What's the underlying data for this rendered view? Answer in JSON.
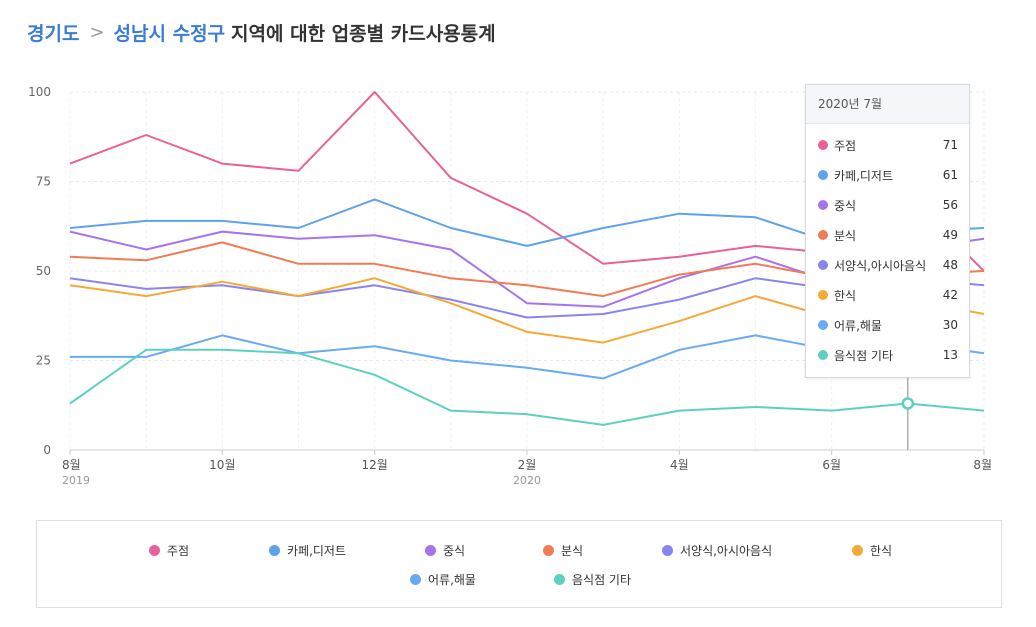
{
  "header": {
    "region": "경기도",
    "separator": ">",
    "subregion": "성남시 수정구",
    "title": "지역에 대한 업종별 카드사용통계"
  },
  "colors": {
    "주점": "#e8629a",
    "카페,디저트": "#5fa2ee",
    "중식": "#a574ee",
    "분식": "#f07b55",
    "서양식,아시아음식": "#8a85ee",
    "한식": "#f5a937",
    "어류,해물": "#6aaaf4",
    "음식점 기타": "#5ed0c0"
  },
  "chart_data": {
    "type": "line",
    "x": [
      "2019-08",
      "2019-09",
      "2019-10",
      "2019-11",
      "2019-12",
      "2020-01",
      "2020-02",
      "2020-03",
      "2020-04",
      "2020-05",
      "2020-06",
      "2020-07",
      "2020-08"
    ],
    "x_tick_labels": [
      {
        "x": "2019-08",
        "label": "8월",
        "sub": "2019"
      },
      {
        "x": "2019-10",
        "label": "10월",
        "sub": ""
      },
      {
        "x": "2019-12",
        "label": "12월",
        "sub": ""
      },
      {
        "x": "2020-02",
        "label": "2월",
        "sub": "2020"
      },
      {
        "x": "2020-04",
        "label": "4월",
        "sub": ""
      },
      {
        "x": "2020-06",
        "label": "6월",
        "sub": ""
      },
      {
        "x": "2020-08",
        "label": "8월",
        "sub": ""
      }
    ],
    "ylim": [
      0,
      100
    ],
    "yticks": [
      0,
      25,
      50,
      75,
      100
    ],
    "grid": true,
    "series": [
      {
        "name": "주점",
        "values": [
          80,
          88,
          80,
          78,
          100,
          76,
          66,
          52,
          54,
          57,
          55,
          71,
          50
        ]
      },
      {
        "name": "카페,디저트",
        "values": [
          62,
          64,
          64,
          62,
          70,
          62,
          57,
          62,
          66,
          65,
          58,
          61,
          62
        ]
      },
      {
        "name": "중식",
        "values": [
          61,
          56,
          61,
          59,
          60,
          56,
          41,
          40,
          48,
          54,
          47,
          56,
          59
        ]
      },
      {
        "name": "분식",
        "values": [
          54,
          53,
          58,
          52,
          52,
          48,
          46,
          43,
          49,
          52,
          48,
          49,
          50
        ]
      },
      {
        "name": "서양식,아시아음식",
        "values": [
          48,
          45,
          46,
          43,
          46,
          42,
          37,
          38,
          42,
          48,
          45,
          48,
          46
        ]
      },
      {
        "name": "한식",
        "values": [
          46,
          43,
          47,
          43,
          48,
          41,
          33,
          30,
          36,
          43,
          37,
          42,
          38
        ]
      },
      {
        "name": "어류,해물",
        "values": [
          26,
          26,
          32,
          27,
          29,
          25,
          23,
          20,
          28,
          32,
          28,
          30,
          27
        ]
      },
      {
        "name": "음식점 기타",
        "values": [
          13,
          28,
          28,
          27,
          21,
          11,
          10,
          7,
          11,
          12,
          11,
          13,
          11
        ]
      }
    ],
    "legend_position": "bottom",
    "hover_index": 11
  },
  "tooltip": {
    "title": "2020년 7월",
    "rows": [
      {
        "name": "주점",
        "value": "71"
      },
      {
        "name": "카페,디저트",
        "value": "61"
      },
      {
        "name": "중식",
        "value": "56"
      },
      {
        "name": "분식",
        "value": "49"
      },
      {
        "name": "서양식,아시아음식",
        "value": "48"
      },
      {
        "name": "한식",
        "value": "42"
      },
      {
        "name": "어류,해물",
        "value": "30"
      },
      {
        "name": "음식점 기타",
        "value": "13"
      }
    ]
  }
}
